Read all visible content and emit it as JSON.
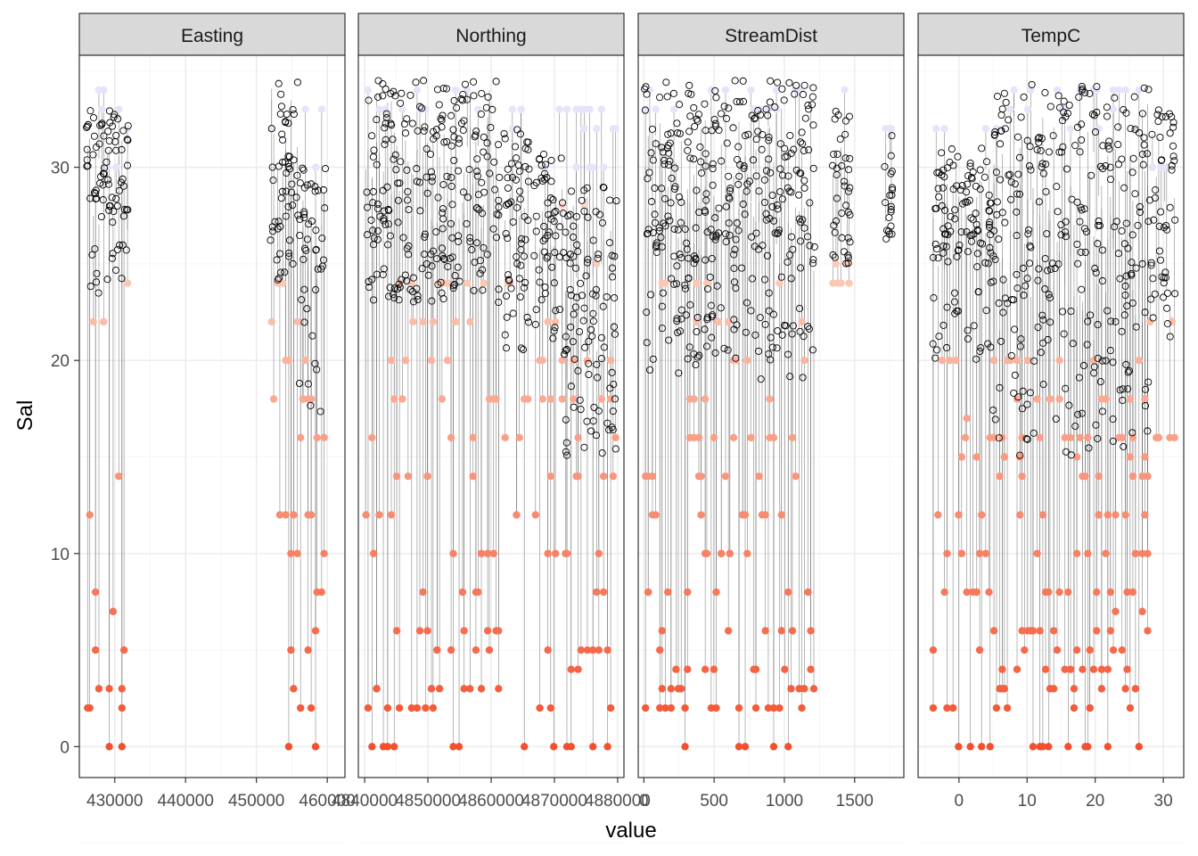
{
  "chart_data": {
    "type": "scatter",
    "faceted": true,
    "xlabel": "value",
    "ylabel": "Sal",
    "ylim": [
      -1.6,
      35.8
    ],
    "y_ticks": [
      0,
      10,
      20,
      30
    ],
    "y_tick_labels": [
      "0",
      "10",
      "20",
      "30"
    ],
    "grid": true,
    "legend": "none",
    "colors": {
      "panel_border": "#333333",
      "strip_fill": "#d9d9d9",
      "grid_major": "#ebebeb",
      "grid_minor": "#f5f5f5",
      "high_point": "#e9e2fb",
      "mid_point": "#fcc7b3",
      "low_point": "#f4502e",
      "observed_point": "#000000",
      "segment": "#555555"
    },
    "panels": [
      {
        "strip": "Easting",
        "xlim": [
          425000,
          462500
        ],
        "x_ticks": [
          430000,
          440000,
          450000,
          460000
        ],
        "x_tick_labels": [
          "430000",
          "440000",
          "450000",
          "460000"
        ],
        "clusters": [
          {
            "x": [
              426000,
              432000
            ],
            "obs_hi": [
              27,
              33
            ],
            "obs_lo": [
              23,
              26
            ],
            "pred_values": [
              0,
              2,
              3,
              5,
              6,
              7,
              8,
              10,
              12,
              14,
              16,
              18,
              20,
              22,
              24,
              26,
              30,
              32,
              33,
              34
            ],
            "pred_freq": 0.6
          },
          {
            "x": [
              452000,
              456000
            ],
            "obs_hi": [
              27,
              34.5
            ],
            "obs_lo": [
              24,
              27
            ],
            "pred_values": [
              0,
              3,
              5,
              8,
              10,
              12,
              15,
              18,
              20,
              22,
              24,
              30,
              32,
              33
            ],
            "pred_freq": 0.5
          },
          {
            "x": [
              456000,
              459800
            ],
            "obs_hi": [
              22,
              30
            ],
            "obs_lo": [
              16.5,
              22
            ],
            "pred_values": [
              0,
              2,
              4,
              5,
              6,
              8,
              10,
              12,
              14,
              16,
              18,
              20,
              24,
              28,
              30,
              32,
              33
            ],
            "pred_freq": 0.9
          }
        ]
      },
      {
        "strip": "Northing",
        "xlim": [
          4839000,
          4881000
        ],
        "x_ticks": [
          4840000,
          4850000,
          4860000,
          4870000,
          4880000
        ],
        "x_tick_labels": [
          "4840000",
          "4850000",
          "4860000",
          "4870000",
          "4880000"
        ],
        "clusters": [
          {
            "x": [
              4840000,
              4861500
            ],
            "obs_hi": [
              26,
              34.5
            ],
            "obs_lo": [
              23,
              26
            ],
            "pred_values": [
              0,
              2,
              3,
              5,
              6,
              8,
              10,
              12,
              14,
              16,
              18,
              20,
              22,
              24,
              33,
              34
            ],
            "pred_freq": 0.55
          },
          {
            "x": [
              4862000,
              4866000
            ],
            "obs_hi": [
              24,
              32
            ],
            "obs_lo": [
              20,
              24
            ],
            "pred_values": [
              0,
              4,
              6,
              10,
              12,
              16,
              18,
              20,
              24,
              32,
              33
            ],
            "pred_freq": 0.5
          },
          {
            "x": [
              4867000,
              4871500
            ],
            "obs_hi": [
              24,
              31
            ],
            "obs_lo": [
              21,
              24
            ],
            "pred_values": [
              0,
              2,
              5,
              8,
              10,
              12,
              14,
              16,
              18,
              20,
              22,
              24,
              28,
              30,
              33
            ],
            "pred_freq": 0.6
          },
          {
            "x": [
              4871500,
              4880000
            ],
            "obs_hi": [
              20,
              29
            ],
            "obs_lo": [
              15,
              20
            ],
            "pred_values": [
              0,
              2,
              4,
              5,
              8,
              10,
              12,
              14,
              16,
              18,
              20,
              22,
              25,
              28,
              30,
              32,
              33
            ],
            "pred_freq": 0.9
          }
        ]
      },
      {
        "strip": "StreamDist",
        "xlim": [
          -40,
          1850
        ],
        "x_ticks": [
          0,
          500,
          1000,
          1500
        ],
        "x_tick_labels": [
          "0",
          "500",
          "1000",
          "1500"
        ],
        "clusters": [
          {
            "x": [
              0,
              1220
            ],
            "obs_hi": [
              25,
              34.5
            ],
            "obs_lo": [
              19,
              25
            ],
            "pred_values": [
              0,
              2,
              3,
              4,
              5,
              6,
              8,
              10,
              12,
              14,
              16,
              18,
              20,
              22,
              24,
              33,
              34
            ],
            "pred_freq": 0.6
          },
          {
            "x": [
              1340,
              1480
            ],
            "obs_hi": [
              26,
              33
            ],
            "obs_lo": [
              25,
              26
            ],
            "pred_values": [
              24,
              25,
              34
            ],
            "pred_freq": 0.3
          },
          {
            "x": [
              1720,
              1780
            ],
            "obs_hi": [
              26,
              32
            ],
            "obs_lo": [
              26,
              27
            ],
            "pred_values": [
              32
            ],
            "pred_freq": 0.2
          }
        ]
      },
      {
        "strip": "TempC",
        "xlim": [
          -6,
          33
        ],
        "x_ticks": [
          0,
          10,
          20,
          30
        ],
        "x_tick_labels": [
          "0",
          "10",
          "20",
          "30"
        ],
        "clusters": [
          {
            "x": [
              -4,
              5
            ],
            "obs_hi": [
              25,
              31
            ],
            "obs_lo": [
              20,
              25
            ],
            "pred_values": [
              0,
              2,
              5,
              8,
              10,
              12,
              15,
              16,
              17,
              20,
              32
            ],
            "pred_freq": 0.5
          },
          {
            "x": [
              5,
              28
            ],
            "obs_hi": [
              22,
              34.5
            ],
            "obs_lo": [
              15,
              22
            ],
            "pred_values": [
              0,
              2,
              3,
              4,
              5,
              6,
              7,
              8,
              10,
              12,
              14,
              15,
              16,
              18,
              20,
              32,
              33,
              34
            ],
            "pred_freq": 0.8
          },
          {
            "x": [
              28,
              32
            ],
            "obs_hi": [
              22,
              33
            ],
            "obs_lo": [
              20,
              26
            ],
            "pred_values": [
              16,
              22,
              30
            ],
            "pred_freq": 0.3
          }
        ]
      }
    ]
  }
}
